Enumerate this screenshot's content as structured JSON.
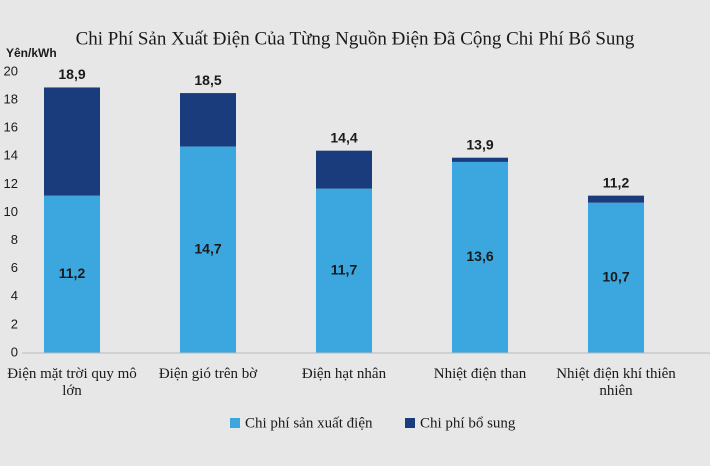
{
  "chart_data": {
    "type": "stacked_bar",
    "title": "Chi Phí Sản Xuất Điện Của Từng Nguồn Điện Đã Cộng Chi Phí Bổ Sung",
    "y_label": "Yên/kWh",
    "categories": [
      "Điện mặt trời quy mô lớn",
      "Điện gió trên bờ",
      "Điện hạt nhân",
      "Nhiệt điện than",
      "Nhiệt điện khí thiên nhiên"
    ],
    "series": [
      {
        "name": "Chi phí sản xuất điện",
        "color": "#3ba7de",
        "values": [
          11.2,
          14.7,
          11.7,
          13.6,
          10.7
        ],
        "value_labels": [
          "11,2",
          "14,7",
          "11,7",
          "13,6",
          "10,7"
        ]
      },
      {
        "name": "Chi phí bổ sung",
        "color": "#1b3c7c",
        "values": [
          7.7,
          3.8,
          2.7,
          0.3,
          0.5
        ]
      }
    ],
    "totals": [
      18.9,
      18.5,
      14.4,
      13.9,
      11.2
    ],
    "total_labels": [
      "18,9",
      "18,5",
      "14,4",
      "13,9",
      "11,2"
    ],
    "ylim": [
      0,
      20
    ],
    "yticks": [
      0,
      2,
      4,
      6,
      8,
      10,
      12,
      14,
      16,
      18,
      20
    ],
    "legend": "bottom"
  }
}
